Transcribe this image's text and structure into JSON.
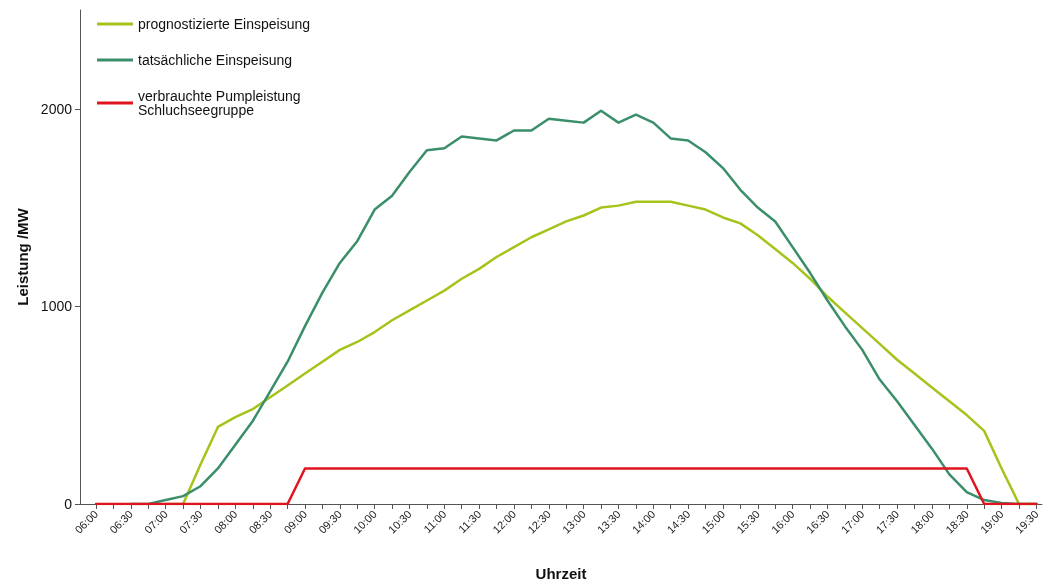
{
  "chart_data": {
    "type": "line",
    "xlabel": "Uhrzeit",
    "ylabel": "Leistung /MW",
    "x": [
      6,
      6.25,
      6.5,
      6.75,
      7,
      7.25,
      7.5,
      7.75,
      8,
      8.25,
      8.5,
      8.75,
      9,
      9.25,
      9.5,
      9.75,
      10,
      10.25,
      10.5,
      10.75,
      11,
      11.25,
      11.5,
      11.75,
      12,
      12.25,
      12.5,
      12.75,
      13,
      13.25,
      13.5,
      13.75,
      14,
      14.25,
      14.5,
      14.75,
      15,
      15.25,
      15.5,
      15.75,
      16,
      16.25,
      16.5,
      16.75,
      17,
      17.25,
      17.5,
      17.75,
      18,
      18.25,
      18.5,
      18.75,
      19,
      19.25,
      19.5
    ],
    "series": [
      {
        "name": "prognostizierte Einspeisung",
        "color": "#a4c41c",
        "values": [
          null,
          null,
          null,
          null,
          0,
          0,
          200,
          390,
          440,
          480,
          540,
          600,
          660,
          720,
          780,
          820,
          870,
          930,
          980,
          1030,
          1080,
          1140,
          1190,
          1250,
          1300,
          1350,
          1390,
          1430,
          1460,
          1500,
          1510,
          1530,
          1530,
          1530,
          1510,
          1490,
          1450,
          1420,
          1360,
          1290,
          1220,
          1140,
          1050,
          970,
          890,
          810,
          730,
          660,
          590,
          520,
          450,
          370,
          180,
          0,
          0
        ]
      },
      {
        "name": "tatsächliche Einspeisung",
        "color": "#3a8f6a",
        "values": [
          null,
          null,
          0,
          0,
          20,
          40,
          90,
          180,
          300,
          420,
          570,
          720,
          900,
          1070,
          1220,
          1330,
          1490,
          1560,
          1680,
          1790,
          1800,
          1860,
          1850,
          1840,
          1890,
          1890,
          1950,
          1940,
          1930,
          1990,
          1930,
          1970,
          1930,
          1850,
          1840,
          1780,
          1700,
          1590,
          1500,
          1430,
          1300,
          1170,
          1030,
          900,
          780,
          630,
          520,
          400,
          280,
          150,
          60,
          20,
          5,
          0,
          0
        ]
      },
      {
        "name": "verbrauchte Pumpleistung Schluchseegruppe",
        "color": "#e0141e",
        "values": [
          0,
          0,
          0,
          0,
          0,
          0,
          0,
          0,
          0,
          0,
          0,
          0,
          180,
          180,
          180,
          180,
          180,
          180,
          180,
          180,
          180,
          180,
          180,
          180,
          180,
          180,
          180,
          180,
          180,
          180,
          180,
          180,
          180,
          180,
          180,
          180,
          180,
          180,
          180,
          180,
          180,
          180,
          180,
          180,
          180,
          180,
          180,
          180,
          180,
          180,
          180,
          0,
          0,
          0,
          0
        ]
      }
    ],
    "xlim": [
      5.77,
      19.58
    ],
    "xticks": [
      {
        "value": 6,
        "label": "06:00"
      },
      {
        "value": 6.25,
        "label": null
      },
      {
        "value": 6.5,
        "label": "06:30"
      },
      {
        "value": 6.75,
        "label": null
      },
      {
        "value": 7,
        "label": "07:00"
      },
      {
        "value": 7.25,
        "label": null
      },
      {
        "value": 7.5,
        "label": "07:30"
      },
      {
        "value": 7.75,
        "label": null
      },
      {
        "value": 8,
        "label": "08:00"
      },
      {
        "value": 8.25,
        "label": null
      },
      {
        "value": 8.5,
        "label": "08:30"
      },
      {
        "value": 8.75,
        "label": null
      },
      {
        "value": 9,
        "label": "09:00"
      },
      {
        "value": 9.25,
        "label": null
      },
      {
        "value": 9.5,
        "label": "09:30"
      },
      {
        "value": 9.75,
        "label": null
      },
      {
        "value": 10,
        "label": "10:00"
      },
      {
        "value": 10.25,
        "label": null
      },
      {
        "value": 10.5,
        "label": "10:30"
      },
      {
        "value": 10.75,
        "label": null
      },
      {
        "value": 11,
        "label": "11:00"
      },
      {
        "value": 11.25,
        "label": null
      },
      {
        "value": 11.5,
        "label": "11:30"
      },
      {
        "value": 11.75,
        "label": null
      },
      {
        "value": 12,
        "label": "12:00"
      },
      {
        "value": 12.25,
        "label": null
      },
      {
        "value": 12.5,
        "label": "12:30"
      },
      {
        "value": 12.75,
        "label": null
      },
      {
        "value": 13,
        "label": "13:00"
      },
      {
        "value": 13.25,
        "label": null
      },
      {
        "value": 13.5,
        "label": "13:30"
      },
      {
        "value": 13.75,
        "label": null
      },
      {
        "value": 14,
        "label": "14:00"
      },
      {
        "value": 14.25,
        "label": null
      },
      {
        "value": 14.5,
        "label": "14:30"
      },
      {
        "value": 14.75,
        "label": null
      },
      {
        "value": 15,
        "label": "15:00"
      },
      {
        "value": 15.25,
        "label": null
      },
      {
        "value": 15.5,
        "label": "15:30"
      },
      {
        "value": 15.75,
        "label": null
      },
      {
        "value": 16,
        "label": "16:00"
      },
      {
        "value": 16.25,
        "label": null
      },
      {
        "value": 16.5,
        "label": "16:30"
      },
      {
        "value": 16.75,
        "label": null
      },
      {
        "value": 17,
        "label": "17:00"
      },
      {
        "value": 17.25,
        "label": null
      },
      {
        "value": 17.5,
        "label": "17:30"
      },
      {
        "value": 17.75,
        "label": null
      },
      {
        "value": 18,
        "label": "18:00"
      },
      {
        "value": 18.25,
        "label": null
      },
      {
        "value": 18.5,
        "label": "18:30"
      },
      {
        "value": 18.75,
        "label": null
      },
      {
        "value": 19,
        "label": "19:00"
      },
      {
        "value": 19.25,
        "label": null
      },
      {
        "value": 19.5,
        "label": "19:30"
      }
    ],
    "ylim": [
      0,
      2500
    ],
    "yticks": [
      0,
      1000,
      2000
    ],
    "grid": false,
    "legend": "top left",
    "marker": "none",
    "line_style": "solid"
  }
}
